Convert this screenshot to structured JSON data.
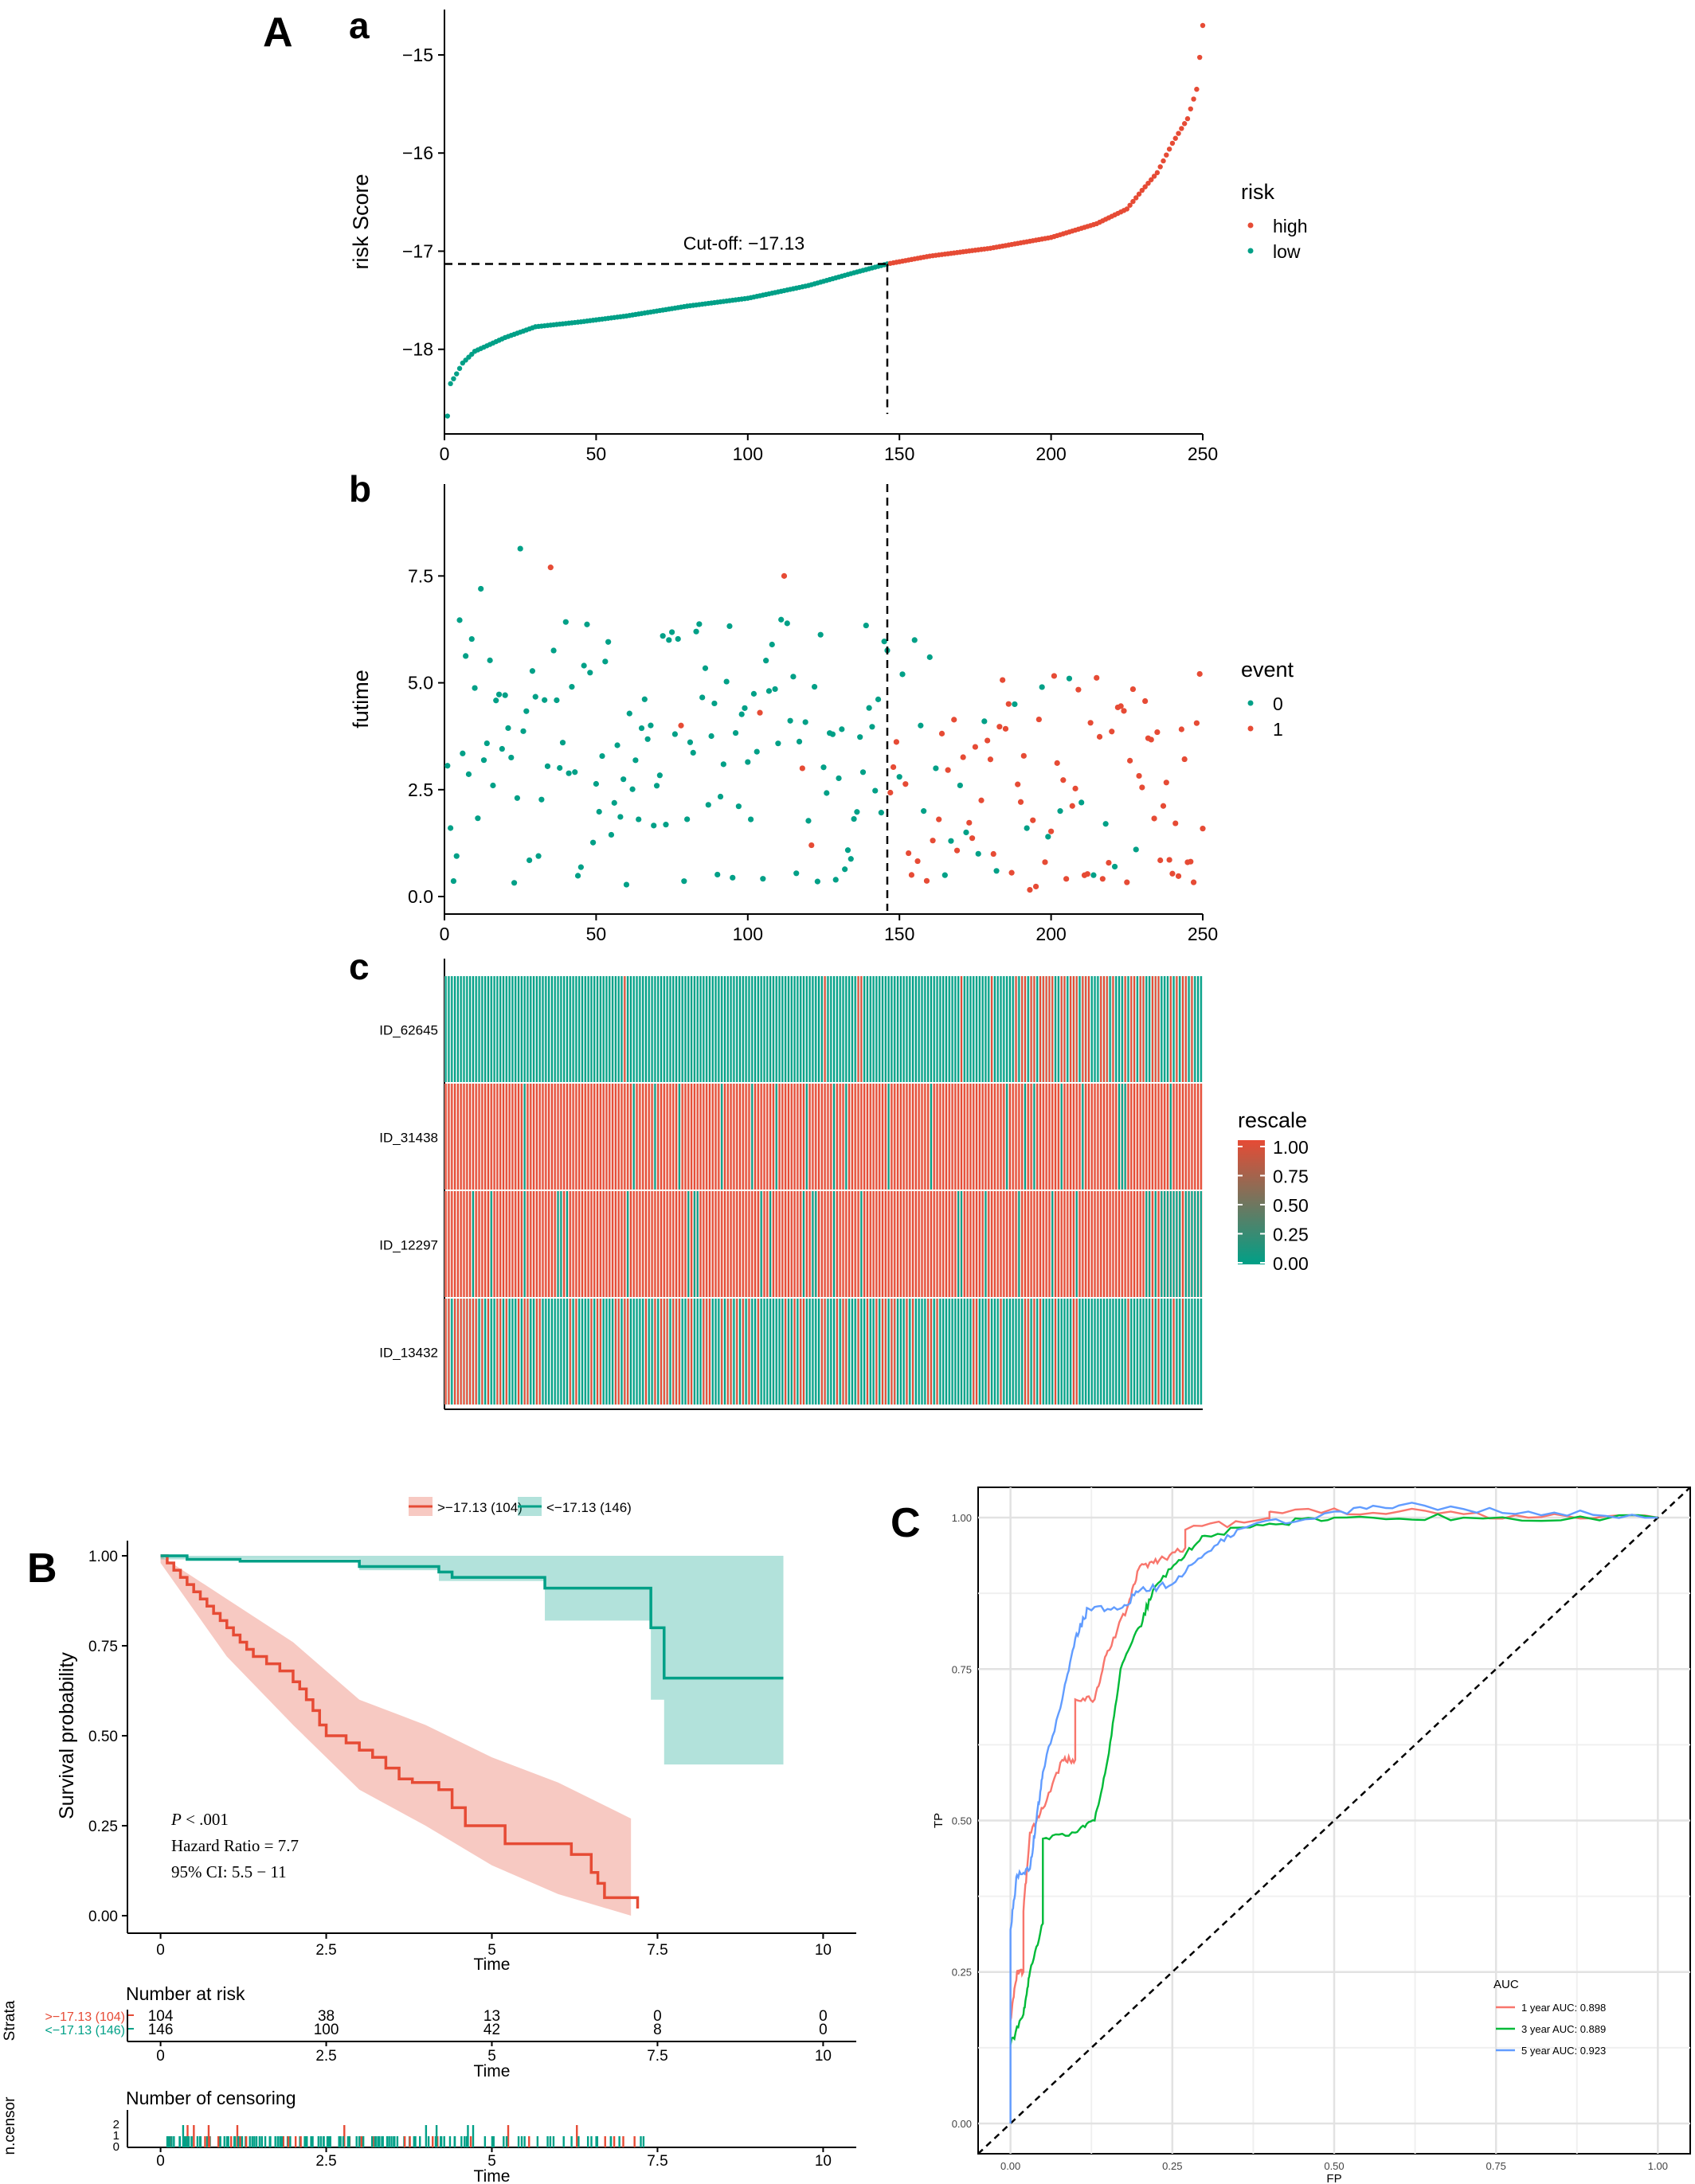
{
  "figure": {
    "panel_A": "A",
    "panel_B": "B",
    "panel_C": "C",
    "sub_a": "a",
    "sub_b": "b",
    "sub_c": "c"
  },
  "chart_data": [
    {
      "id": "risk-score",
      "type": "scatter",
      "xlabel": "",
      "ylabel": "risk Score",
      "xlim": [
        0,
        250
      ],
      "ylim": [
        -18.7,
        -14.7
      ],
      "xticks": [
        "0",
        "50",
        "100",
        "150",
        "200",
        "250"
      ],
      "yticks": [
        "−15",
        "−16",
        "−17",
        "−18"
      ],
      "cutoff_label": "Cut-off: −17.13",
      "cutoff": {
        "x": 146,
        "y": -17.13
      },
      "legend": {
        "title": "risk",
        "items": [
          "high",
          "low"
        ],
        "colors": [
          "#E64B35",
          "#00A087"
        ]
      },
      "curve_knots": [
        [
          1,
          -18.68
        ],
        [
          2,
          -18.35
        ],
        [
          4,
          -18.25
        ],
        [
          6,
          -18.14
        ],
        [
          10,
          -18.02
        ],
        [
          15,
          -17.95
        ],
        [
          20,
          -17.88
        ],
        [
          30,
          -17.77
        ],
        [
          45,
          -17.72
        ],
        [
          60,
          -17.66
        ],
        [
          80,
          -17.56
        ],
        [
          100,
          -17.48
        ],
        [
          120,
          -17.35
        ],
        [
          135,
          -17.22
        ],
        [
          146,
          -17.13
        ],
        [
          160,
          -17.05
        ],
        [
          180,
          -16.97
        ],
        [
          200,
          -16.86
        ],
        [
          215,
          -16.72
        ],
        [
          225,
          -16.57
        ],
        [
          230,
          -16.38
        ],
        [
          235,
          -16.2
        ],
        [
          240,
          -15.9
        ],
        [
          245,
          -15.65
        ],
        [
          248,
          -15.35
        ],
        [
          250,
          -14.7
        ]
      ]
    },
    {
      "id": "futime",
      "type": "scatter",
      "ylabel": "futime",
      "xlim": [
        0,
        250
      ],
      "ylim": [
        0,
        9.5
      ],
      "xticks": [
        "0",
        "50",
        "100",
        "150",
        "200",
        "250"
      ],
      "yticks": [
        "0.0",
        "2.5",
        "5.0",
        "7.5"
      ],
      "cutoff_x": 146,
      "legend": {
        "title": "event",
        "items": [
          "0",
          "1"
        ],
        "colors": [
          "#00A087",
          "#E64B35"
        ]
      },
      "events_low": [
        [
          35,
          7.7
        ],
        [
          78,
          4.0
        ],
        [
          104,
          4.3
        ],
        [
          112,
          7.5
        ],
        [
          118,
          3.0
        ],
        [
          121,
          1.2
        ]
      ],
      "events_high_zero": [
        [
          150,
          2.8
        ],
        [
          151,
          5.2
        ],
        [
          155,
          6.0
        ],
        [
          157,
          4.0
        ],
        [
          158,
          2.0
        ],
        [
          160,
          5.6
        ],
        [
          162,
          3.0
        ],
        [
          165,
          0.5
        ],
        [
          167,
          1.3
        ],
        [
          170,
          2.6
        ],
        [
          172,
          1.5
        ],
        [
          176,
          1.0
        ],
        [
          178,
          4.1
        ],
        [
          182,
          0.6
        ],
        [
          188,
          4.5
        ],
        [
          192,
          1.6
        ],
        [
          197,
          4.9
        ],
        [
          199,
          1.4
        ],
        [
          203,
          2.0
        ],
        [
          206,
          5.1
        ],
        [
          210,
          2.2
        ],
        [
          214,
          0.5
        ],
        [
          218,
          1.7
        ],
        [
          221,
          0.7
        ],
        [
          228,
          1.1
        ]
      ]
    },
    {
      "id": "heatmap",
      "type": "heatmap",
      "rows": [
        "ID_62645",
        "ID_31438",
        "ID_12297",
        "ID_13432"
      ],
      "legend": {
        "title": "rescale",
        "ticks": [
          "1.00",
          "0.75",
          "0.50",
          "0.25",
          "0.00"
        ],
        "colors": [
          "#E64B35",
          "#00A087"
        ]
      }
    },
    {
      "id": "km",
      "type": "line",
      "xlabel": "Time",
      "ylabel": "Survival probability",
      "xlim": [
        -0.5,
        10.5
      ],
      "ylim": [
        0,
        1
      ],
      "xticks": [
        "0",
        "2.5",
        "5",
        "7.5",
        "10"
      ],
      "yticks": [
        "0.00",
        "0.25",
        "0.50",
        "0.75",
        "1.00"
      ],
      "legend": [
        ">−17.13 (104)",
        "<−17.13 (146)"
      ],
      "colors": [
        "#E64B35",
        "#00A087"
      ],
      "stats": {
        "p": "P",
        "p_rest": " < .001",
        "hr": "Hazard Ratio = 7.7",
        "ci": "95% CI: 5.5 − 11"
      },
      "series": [
        {
          "name": ">−17.13 (104)",
          "steps": [
            [
              0,
              1.0
            ],
            [
              0.1,
              0.98
            ],
            [
              0.2,
              0.96
            ],
            [
              0.3,
              0.94
            ],
            [
              0.4,
              0.92
            ],
            [
              0.5,
              0.9
            ],
            [
              0.6,
              0.88
            ],
            [
              0.7,
              0.86
            ],
            [
              0.8,
              0.84
            ],
            [
              0.9,
              0.82
            ],
            [
              1.0,
              0.8
            ],
            [
              1.1,
              0.78
            ],
            [
              1.2,
              0.76
            ],
            [
              1.3,
              0.74
            ],
            [
              1.4,
              0.72
            ],
            [
              1.6,
              0.7
            ],
            [
              1.8,
              0.68
            ],
            [
              2.0,
              0.65
            ],
            [
              2.1,
              0.63
            ],
            [
              2.2,
              0.6
            ],
            [
              2.3,
              0.57
            ],
            [
              2.4,
              0.53
            ],
            [
              2.5,
              0.5
            ],
            [
              2.8,
              0.48
            ],
            [
              3.0,
              0.46
            ],
            [
              3.2,
              0.44
            ],
            [
              3.4,
              0.41
            ],
            [
              3.6,
              0.38
            ],
            [
              3.8,
              0.37
            ],
            [
              4.2,
              0.35
            ],
            [
              4.4,
              0.3
            ],
            [
              4.6,
              0.25
            ],
            [
              5.2,
              0.2
            ],
            [
              6.2,
              0.17
            ],
            [
              6.5,
              0.12
            ],
            [
              6.6,
              0.09
            ],
            [
              6.7,
              0.05
            ],
            [
              7.2,
              0.02
            ]
          ],
          "end": 7.2
        },
        {
          "name": "<−17.13 (146)",
          "steps": [
            [
              0,
              1.0
            ],
            [
              0.4,
              0.99
            ],
            [
              1.2,
              0.985
            ],
            [
              3.0,
              0.97
            ],
            [
              4.2,
              0.955
            ],
            [
              4.4,
              0.94
            ],
            [
              5.8,
              0.91
            ],
            [
              7.4,
              0.8
            ],
            [
              7.6,
              0.66
            ]
          ],
          "end": 9.4
        }
      ],
      "bands": [
        {
          "upper": [
            [
              0,
              1.0
            ],
            [
              1,
              0.88
            ],
            [
              2,
              0.76
            ],
            [
              3,
              0.6
            ],
            [
              4,
              0.53
            ],
            [
              5,
              0.44
            ],
            [
              6,
              0.37
            ],
            [
              7.1,
              0.27
            ]
          ],
          "lower": [
            [
              0,
              0.98
            ],
            [
              1,
              0.72
            ],
            [
              2,
              0.53
            ],
            [
              3,
              0.35
            ],
            [
              4,
              0.25
            ],
            [
              5,
              0.14
            ],
            [
              6,
              0.06
            ],
            [
              7.1,
              0.0
            ]
          ]
        },
        {
          "upper": [
            [
              0,
              1.0
            ],
            [
              9.4,
              1.0
            ]
          ],
          "lower": [
            [
              0,
              0.99
            ],
            [
              3,
              0.96
            ],
            [
              4.2,
              0.93
            ],
            [
              5.8,
              0.82
            ],
            [
              7.4,
              0.6
            ],
            [
              7.6,
              0.42
            ],
            [
              9.4,
              0.42
            ]
          ]
        }
      ],
      "risk_title": "Number at risk",
      "strata_label": "Strata",
      "risk_strata": [
        ">−17.13 (104)",
        "<−17.13 (146)"
      ],
      "risk_table": [
        [
          "104",
          "38",
          "13",
          "0",
          "0"
        ],
        [
          "146",
          "100",
          "42",
          "8",
          "0"
        ]
      ],
      "risk_x": [
        0,
        2.5,
        5,
        7.5,
        10
      ],
      "censor_title": "Number of censoring",
      "censor_ylabel": "n.censor",
      "censor_yticks": [
        "0",
        "1",
        "2"
      ]
    },
    {
      "id": "roc",
      "type": "line",
      "xlabel": "FP",
      "ylabel": "TP",
      "xlim": [
        -0.05,
        1.05
      ],
      "ylim": [
        -0.05,
        1.05
      ],
      "xticks": [
        "0.00",
        "0.25",
        "0.50",
        "0.75",
        "1.00"
      ],
      "yticks": [
        "0.00",
        "0.25",
        "0.50",
        "0.75",
        "1.00"
      ],
      "legend_title": "AUC",
      "series": [
        {
          "name": "1 year AUC: 0.898",
          "color": "#F8766D",
          "points": [
            [
              0,
              0.17
            ],
            [
              0.01,
              0.25
            ],
            [
              0.02,
              0.25
            ],
            [
              0.02,
              0.35
            ],
            [
              0.03,
              0.48
            ],
            [
              0.05,
              0.52
            ],
            [
              0.08,
              0.6
            ],
            [
              0.1,
              0.6
            ],
            [
              0.1,
              0.7
            ],
            [
              0.13,
              0.7
            ],
            [
              0.15,
              0.78
            ],
            [
              0.18,
              0.85
            ],
            [
              0.2,
              0.92
            ],
            [
              0.23,
              0.93
            ],
            [
              0.27,
              0.95
            ],
            [
              0.27,
              0.98
            ],
            [
              0.4,
              1.0
            ],
            [
              0.4,
              1.01
            ],
            [
              0.6,
              1.01
            ],
            [
              0.8,
              1.0
            ],
            [
              1.0,
              1.0
            ]
          ]
        },
        {
          "name": "3 year AUC: 0.889",
          "color": "#00BA38",
          "points": [
            [
              0,
              0.13
            ],
            [
              0.02,
              0.18
            ],
            [
              0.03,
              0.25
            ],
            [
              0.05,
              0.33
            ],
            [
              0.05,
              0.47
            ],
            [
              0.1,
              0.48
            ],
            [
              0.13,
              0.5
            ],
            [
              0.15,
              0.6
            ],
            [
              0.17,
              0.75
            ],
            [
              0.2,
              0.82
            ],
            [
              0.22,
              0.88
            ],
            [
              0.26,
              0.93
            ],
            [
              0.3,
              0.97
            ],
            [
              0.4,
              0.99
            ],
            [
              0.5,
              1.0
            ],
            [
              0.7,
              1.0
            ],
            [
              1.0,
              1.0
            ]
          ]
        },
        {
          "name": "5 year AUC: 0.923",
          "color": "#619CFF",
          "points": [
            [
              0,
              0.0
            ],
            [
              0,
              0.32
            ],
            [
              0.01,
              0.41
            ],
            [
              0.03,
              0.42
            ],
            [
              0.04,
              0.5
            ],
            [
              0.05,
              0.58
            ],
            [
              0.08,
              0.7
            ],
            [
              0.1,
              0.8
            ],
            [
              0.12,
              0.85
            ],
            [
              0.17,
              0.85
            ],
            [
              0.2,
              0.88
            ],
            [
              0.25,
              0.89
            ],
            [
              0.3,
              0.94
            ],
            [
              0.35,
              0.98
            ],
            [
              0.5,
              1.01
            ],
            [
              0.6,
              1.02
            ],
            [
              0.8,
              1.01
            ],
            [
              1.0,
              1.0
            ]
          ]
        }
      ]
    }
  ]
}
